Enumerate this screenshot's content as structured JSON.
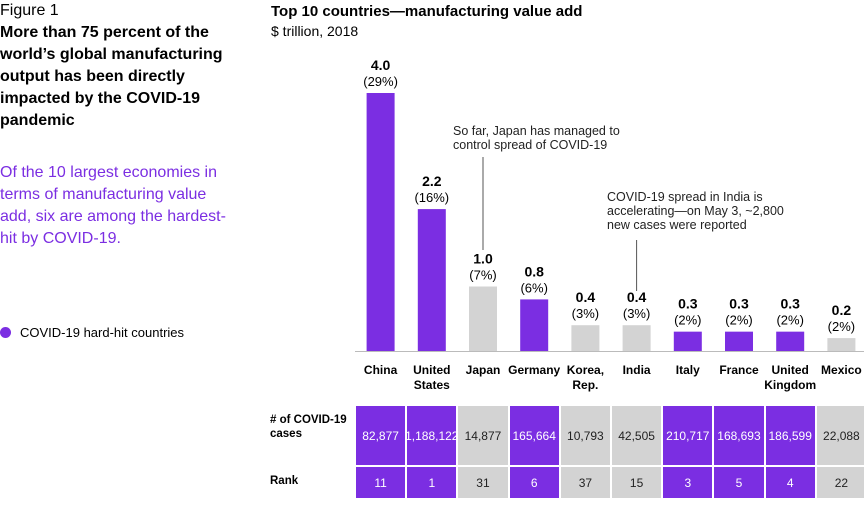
{
  "figure_label": "Figure 1",
  "headline": "More than 75 percent of the world’s global manufacturing output has been directly impacted by the COVID-19 pandemic",
  "subtext": "Of the 10 largest economies in terms of manufacturing value add, six are among the hardest-hit by COVID-19.",
  "legend_label": "COVID-19 hard-hit countries",
  "colors": {
    "hit": "#7b2ee2",
    "other": "#d3d3d3"
  },
  "annotations": {
    "japan": "So far, Japan has managed to control spread of COVID-19",
    "india": "COVID-19 spread in India is accelerating—on May 3, ~2,800 new cases were reported"
  },
  "table": {
    "cases_label": "# of COVID-19 cases",
    "rank_label": "Rank"
  },
  "chart_data": {
    "type": "bar",
    "title": "Top 10 countries—manufacturing value add",
    "subtitle": "$ trillion, 2018",
    "categories": [
      "China",
      "United States",
      "Japan",
      "Germany",
      "Korea, Rep.",
      "India",
      "Italy",
      "France",
      "United Kingdom",
      "Mexico"
    ],
    "values": [
      4.0,
      2.2,
      1.0,
      0.8,
      0.4,
      0.4,
      0.3,
      0.3,
      0.3,
      0.2
    ],
    "value_labels": [
      "4.0",
      "2.2",
      "1.0",
      "0.8",
      "0.4",
      "0.4",
      "0.3",
      "0.3",
      "0.3",
      "0.2"
    ],
    "percent_labels": [
      "(29%)",
      "(16%)",
      "(7%)",
      "(6%)",
      "(3%)",
      "(3%)",
      "(2%)",
      "(2%)",
      "(2%)",
      "(2%)"
    ],
    "hard_hit": [
      true,
      true,
      false,
      true,
      false,
      false,
      true,
      true,
      true,
      false
    ],
    "covid_cases": [
      "82,877",
      "1,188,122",
      "14,877",
      "165,664",
      "10,793",
      "42,505",
      "210,717",
      "168,693",
      "186,599",
      "22,088"
    ],
    "rank": [
      "11",
      "1",
      "31",
      "6",
      "37",
      "15",
      "3",
      "5",
      "4",
      "22"
    ],
    "grid": false,
    "legend_position": "left"
  }
}
